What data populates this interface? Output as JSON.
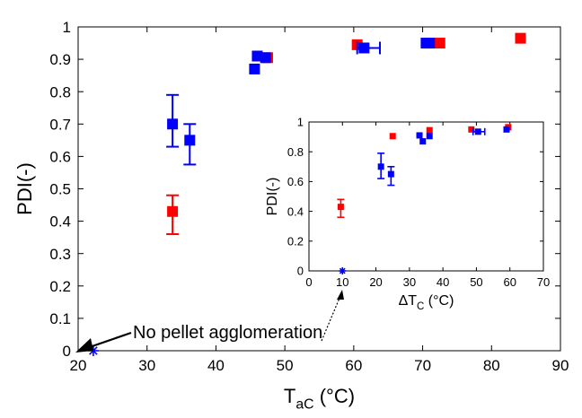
{
  "chart_data": [
    {
      "type": "scatter",
      "title": "",
      "xlabel_main": "T",
      "xlabel_sub": "aC",
      "xlabel_unit": " (°C)",
      "ylabel": "PDI(-)",
      "xlim": [
        20,
        90
      ],
      "ylim": [
        0,
        1
      ],
      "xticks": [
        20,
        30,
        40,
        50,
        60,
        70,
        80,
        90
      ],
      "yticks": [
        0,
        0.1,
        0.2,
        0.3,
        0.4,
        0.5,
        0.6,
        0.7,
        0.8,
        0.9,
        1
      ],
      "ytick_labels": [
        "0",
        "0.1",
        "0.2",
        "0.3",
        "0.4",
        "0.5",
        "0.6",
        "0.7",
        "0.8",
        "0.9",
        "1"
      ],
      "annotation": "No pellet agglomeration",
      "series": [
        {
          "name": "red",
          "color": "#ff0000",
          "marker": "square",
          "points": [
            {
              "x": 33.7,
              "y": 0.43,
              "ylo": 0.36,
              "yhi": 0.48
            },
            {
              "x": 47.5,
              "y": 0.905
            },
            {
              "x": 60.5,
              "y": 0.945
            },
            {
              "x": 72.5,
              "y": 0.95
            },
            {
              "x": 84.2,
              "y": 0.965
            }
          ]
        },
        {
          "name": "blue",
          "color": "#0000ff",
          "marker": "square",
          "points": [
            {
              "x": 33.7,
              "y": 0.7,
              "ylo": 0.63,
              "yhi": 0.79
            },
            {
              "x": 36.2,
              "y": 0.65,
              "ylo": 0.575,
              "yhi": 0.7
            },
            {
              "x": 45.6,
              "y": 0.87
            },
            {
              "x": 46.0,
              "y": 0.91
            },
            {
              "x": 47.2,
              "y": 0.905
            },
            {
              "x": 61.5,
              "y": 0.935,
              "xlo": 60.5,
              "xhi": 63.8
            },
            {
              "x": 70.5,
              "y": 0.95
            },
            {
              "x": 71.0,
              "y": 0.95
            }
          ]
        },
        {
          "name": "blue-star",
          "color": "#0000ff",
          "marker": "star",
          "points": [
            {
              "x": 22.2,
              "y": 0.0
            }
          ]
        }
      ]
    },
    {
      "type": "scatter",
      "title": "",
      "xlabel_main": "ΔT",
      "xlabel_sub": "C",
      "xlabel_unit": " (°C)",
      "ylabel": "PDI(-)",
      "xlim": [
        0,
        70
      ],
      "ylim": [
        0,
        1
      ],
      "xticks": [
        0,
        10,
        20,
        30,
        40,
        50,
        60,
        70
      ],
      "yticks": [
        0,
        0.2,
        0.4,
        0.6,
        0.8,
        1
      ],
      "ytick_labels": [
        "0",
        "0.2",
        "0.4",
        "0.6",
        "0.8",
        "1"
      ],
      "series": [
        {
          "name": "red",
          "color": "#ff0000",
          "marker": "square",
          "points": [
            {
              "x": 9.5,
              "y": 0.43,
              "ylo": 0.36,
              "yhi": 0.48
            },
            {
              "x": 25.0,
              "y": 0.905
            },
            {
              "x": 36.0,
              "y": 0.945
            },
            {
              "x": 48.5,
              "y": 0.95
            },
            {
              "x": 59.5,
              "y": 0.965
            }
          ]
        },
        {
          "name": "blue",
          "color": "#0000ff",
          "marker": "square",
          "points": [
            {
              "x": 21.5,
              "y": 0.7,
              "ylo": 0.62,
              "yhi": 0.79
            },
            {
              "x": 24.5,
              "y": 0.65,
              "ylo": 0.575,
              "yhi": 0.7
            },
            {
              "x": 33.0,
              "y": 0.91
            },
            {
              "x": 34.0,
              "y": 0.87
            },
            {
              "x": 36.0,
              "y": 0.905
            },
            {
              "x": 50.5,
              "y": 0.935,
              "xlo": 49.0,
              "xhi": 52.5
            },
            {
              "x": 59.0,
              "y": 0.95
            }
          ]
        },
        {
          "name": "blue-star",
          "color": "#0000ff",
          "marker": "star",
          "points": [
            {
              "x": 10.0,
              "y": 0.0
            }
          ]
        }
      ]
    }
  ]
}
